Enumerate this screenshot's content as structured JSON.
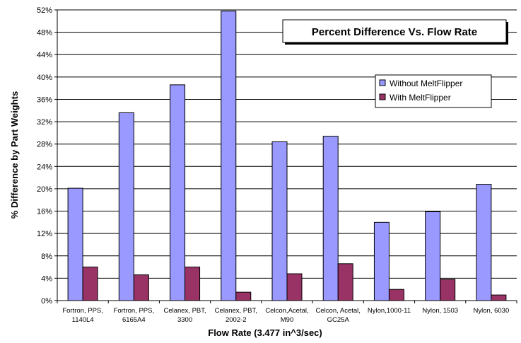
{
  "chart_data": {
    "type": "bar",
    "title": "Percent Difference Vs. Flow Rate",
    "xlabel": "Flow Rate (3.477 in^3/sec)",
    "ylabel": "% Difference by Part Weights",
    "ylim": [
      0,
      52
    ],
    "yticks": [
      "0%",
      "4%",
      "8%",
      "12%",
      "16%",
      "20%",
      "24%",
      "28%",
      "32%",
      "36%",
      "40%",
      "44%",
      "48%",
      "52%"
    ],
    "grid": true,
    "legend_position": "right",
    "categories": [
      [
        "Fortron, PPS,",
        "1140L4"
      ],
      [
        "Fortron, PPS,",
        "6165A4"
      ],
      [
        "Celanex, PBT,",
        "3300"
      ],
      [
        "Celanex, PBT,",
        "2002-2"
      ],
      [
        "Celcon,Acetal,",
        "M90"
      ],
      [
        "Celcon, Acetal,",
        "GC25A"
      ],
      [
        "Nylon,1000-11"
      ],
      [
        "Nylon, 1503"
      ],
      [
        "Nylon, 6030"
      ]
    ],
    "series": [
      {
        "name": "Without MeltFlipper",
        "color": "#9999ff",
        "values": [
          20.1,
          33.6,
          38.6,
          51.8,
          28.4,
          29.4,
          14.0,
          15.9,
          20.8
        ]
      },
      {
        "name": "With MeltFlipper",
        "color": "#993366",
        "values": [
          6.0,
          4.6,
          6.0,
          1.5,
          4.8,
          6.6,
          2.0,
          3.8,
          1.0
        ]
      }
    ]
  }
}
